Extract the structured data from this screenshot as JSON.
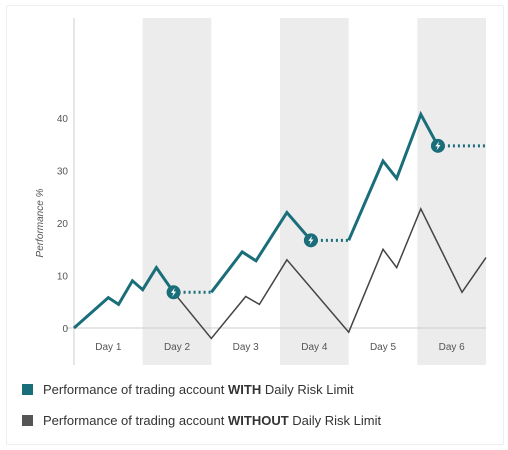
{
  "chart_data": {
    "type": "line",
    "title": "",
    "xlabel": "",
    "ylabel": "Performance %",
    "categories": [
      "Day 1",
      "Day 2",
      "Day 3",
      "Day 4",
      "Day 5",
      "Day 6"
    ],
    "x_range": [
      0,
      6
    ],
    "ylim": [
      -4,
      56
    ],
    "yticks": [
      0,
      10,
      20,
      30,
      40
    ],
    "grid": "alternating shaded day columns",
    "legend_position": "bottom",
    "series": [
      {
        "name": "Performance of trading account WITH Daily Risk Limit",
        "color": "#1a6e7a",
        "solid": [
          {
            "x": 0,
            "y": 0
          },
          {
            "x": 0.5,
            "y": 5.8
          },
          {
            "x": 0.65,
            "y": 4.5
          },
          {
            "x": 0.85,
            "y": 9
          },
          {
            "x": 1.0,
            "y": 7.3
          },
          {
            "x": 1.2,
            "y": 11.5
          },
          {
            "x": 1.45,
            "y": 6.8
          }
        ],
        "limit_segments": [
          {
            "x_start": 1.45,
            "x_end": 2.0,
            "y": 6.8,
            "marker_x": 1.45
          },
          {
            "x_start": 3.45,
            "x_end": 4.0,
            "y": 16.7,
            "marker_x": 3.45
          },
          {
            "x_start": 5.3,
            "x_end": 6.0,
            "y": 34.7,
            "marker_x": 5.3
          }
        ],
        "solid_2": [
          {
            "x": 2.0,
            "y": 6.8
          },
          {
            "x": 2.45,
            "y": 14.5
          },
          {
            "x": 2.65,
            "y": 12.8
          },
          {
            "x": 3.1,
            "y": 22
          },
          {
            "x": 3.45,
            "y": 16.7
          }
        ],
        "solid_3": [
          {
            "x": 4.0,
            "y": 16.7
          },
          {
            "x": 4.5,
            "y": 31.8
          },
          {
            "x": 4.7,
            "y": 28.5
          },
          {
            "x": 5.05,
            "y": 40.7
          },
          {
            "x": 5.3,
            "y": 34.7
          }
        ]
      },
      {
        "name": "Performance of trading account WITHOUT Daily Risk Limit",
        "color": "#444444",
        "points": [
          {
            "x": 0,
            "y": 0
          },
          {
            "x": 0.5,
            "y": 5.8
          },
          {
            "x": 0.65,
            "y": 4.5
          },
          {
            "x": 0.85,
            "y": 9
          },
          {
            "x": 1.0,
            "y": 7.3
          },
          {
            "x": 1.2,
            "y": 11.5
          },
          {
            "x": 1.45,
            "y": 6.8
          },
          {
            "x": 2.0,
            "y": -2
          },
          {
            "x": 2.5,
            "y": 6
          },
          {
            "x": 2.7,
            "y": 4.5
          },
          {
            "x": 3.1,
            "y": 13
          },
          {
            "x": 4.0,
            "y": -0.8
          },
          {
            "x": 4.5,
            "y": 15
          },
          {
            "x": 4.7,
            "y": 11.5
          },
          {
            "x": 5.05,
            "y": 22.7
          },
          {
            "x": 5.65,
            "y": 6.8
          },
          {
            "x": 6.0,
            "y": 13.4
          }
        ]
      }
    ]
  },
  "legend": [
    {
      "pre": "Performance of trading account ",
      "bold": "WITH",
      "post": " Daily Risk Limit",
      "color": "#1a6e7a"
    },
    {
      "pre": "Performance of trading account ",
      "bold": "WITHOUT",
      "post": " Daily Risk Limit",
      "color": "#555555"
    }
  ],
  "colors": {
    "shade": "#ececec",
    "axis": "#cccccc",
    "tick_text": "#555555",
    "marker": "#1a6e7a"
  },
  "icons": {
    "limit_marker": "lightning-bolt-icon"
  }
}
